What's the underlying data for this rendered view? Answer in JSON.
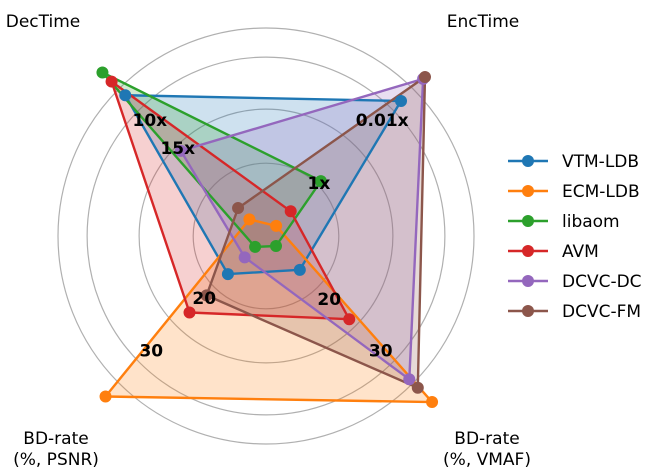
{
  "chart_data": {
    "type": "radar",
    "axes": [
      {
        "key": "dec",
        "label": "DecTime"
      },
      {
        "key": "enc",
        "label": "EncTime"
      },
      {
        "key": "vmaf",
        "label_lines": [
          "BD-rate",
          "(%, VMAF)"
        ]
      },
      {
        "key": "psnr",
        "label_lines": [
          "BD-rate",
          "(%, PSNR)"
        ]
      }
    ],
    "ring_labels": [
      {
        "axis": "dec",
        "ring": 0.79,
        "text": "10x"
      },
      {
        "axis": "dec",
        "ring": 0.6,
        "text": "15x"
      },
      {
        "axis": "enc",
        "ring": 0.79,
        "text": "0.01x"
      },
      {
        "axis": "enc",
        "ring": 0.36,
        "text": "1x"
      },
      {
        "axis": "vmaf",
        "ring": 0.43,
        "text": "20"
      },
      {
        "axis": "vmaf",
        "ring": 0.78,
        "text": "30"
      },
      {
        "axis": "psnr",
        "ring": 0.42,
        "text": "20"
      },
      {
        "axis": "psnr",
        "ring": 0.78,
        "text": "30"
      }
    ],
    "rings": [
      0.35,
      0.61,
      0.86,
      1.0
    ],
    "grid": true,
    "legend_position": "right",
    "series": [
      {
        "name": "VTM-LDB",
        "color": "#1f77b4",
        "values": {
          "dec": 0.957,
          "enc": 0.918,
          "vmaf": 0.23,
          "psnr": 0.259
        }
      },
      {
        "name": "ECM-LDB",
        "color": "#ff7f0e",
        "values": {
          "dec": 0.113,
          "enc": 0.069,
          "vmaf": 1.129,
          "psnr": 1.091
        }
      },
      {
        "name": "libaom",
        "color": "#2ca02c",
        "values": {
          "dec": 1.112,
          "enc": 0.373,
          "vmaf": 0.068,
          "psnr": 0.074
        }
      },
      {
        "name": "AVM",
        "color": "#d62728",
        "values": {
          "dec": 1.05,
          "enc": 0.168,
          "vmaf": 0.566,
          "psnr": 0.52
        }
      },
      {
        "name": "DCVC-DC",
        "color": "#9467bd",
        "values": {
          "dec": 0.579,
          "enc": 1.068,
          "vmaf": 0.974,
          "psnr": 0.145
        }
      },
      {
        "name": "DCVC-FM",
        "color": "#8c564b",
        "values": {
          "dec": 0.19,
          "enc": 1.081,
          "vmaf": 1.032,
          "psnr": 0.404
        }
      }
    ]
  }
}
